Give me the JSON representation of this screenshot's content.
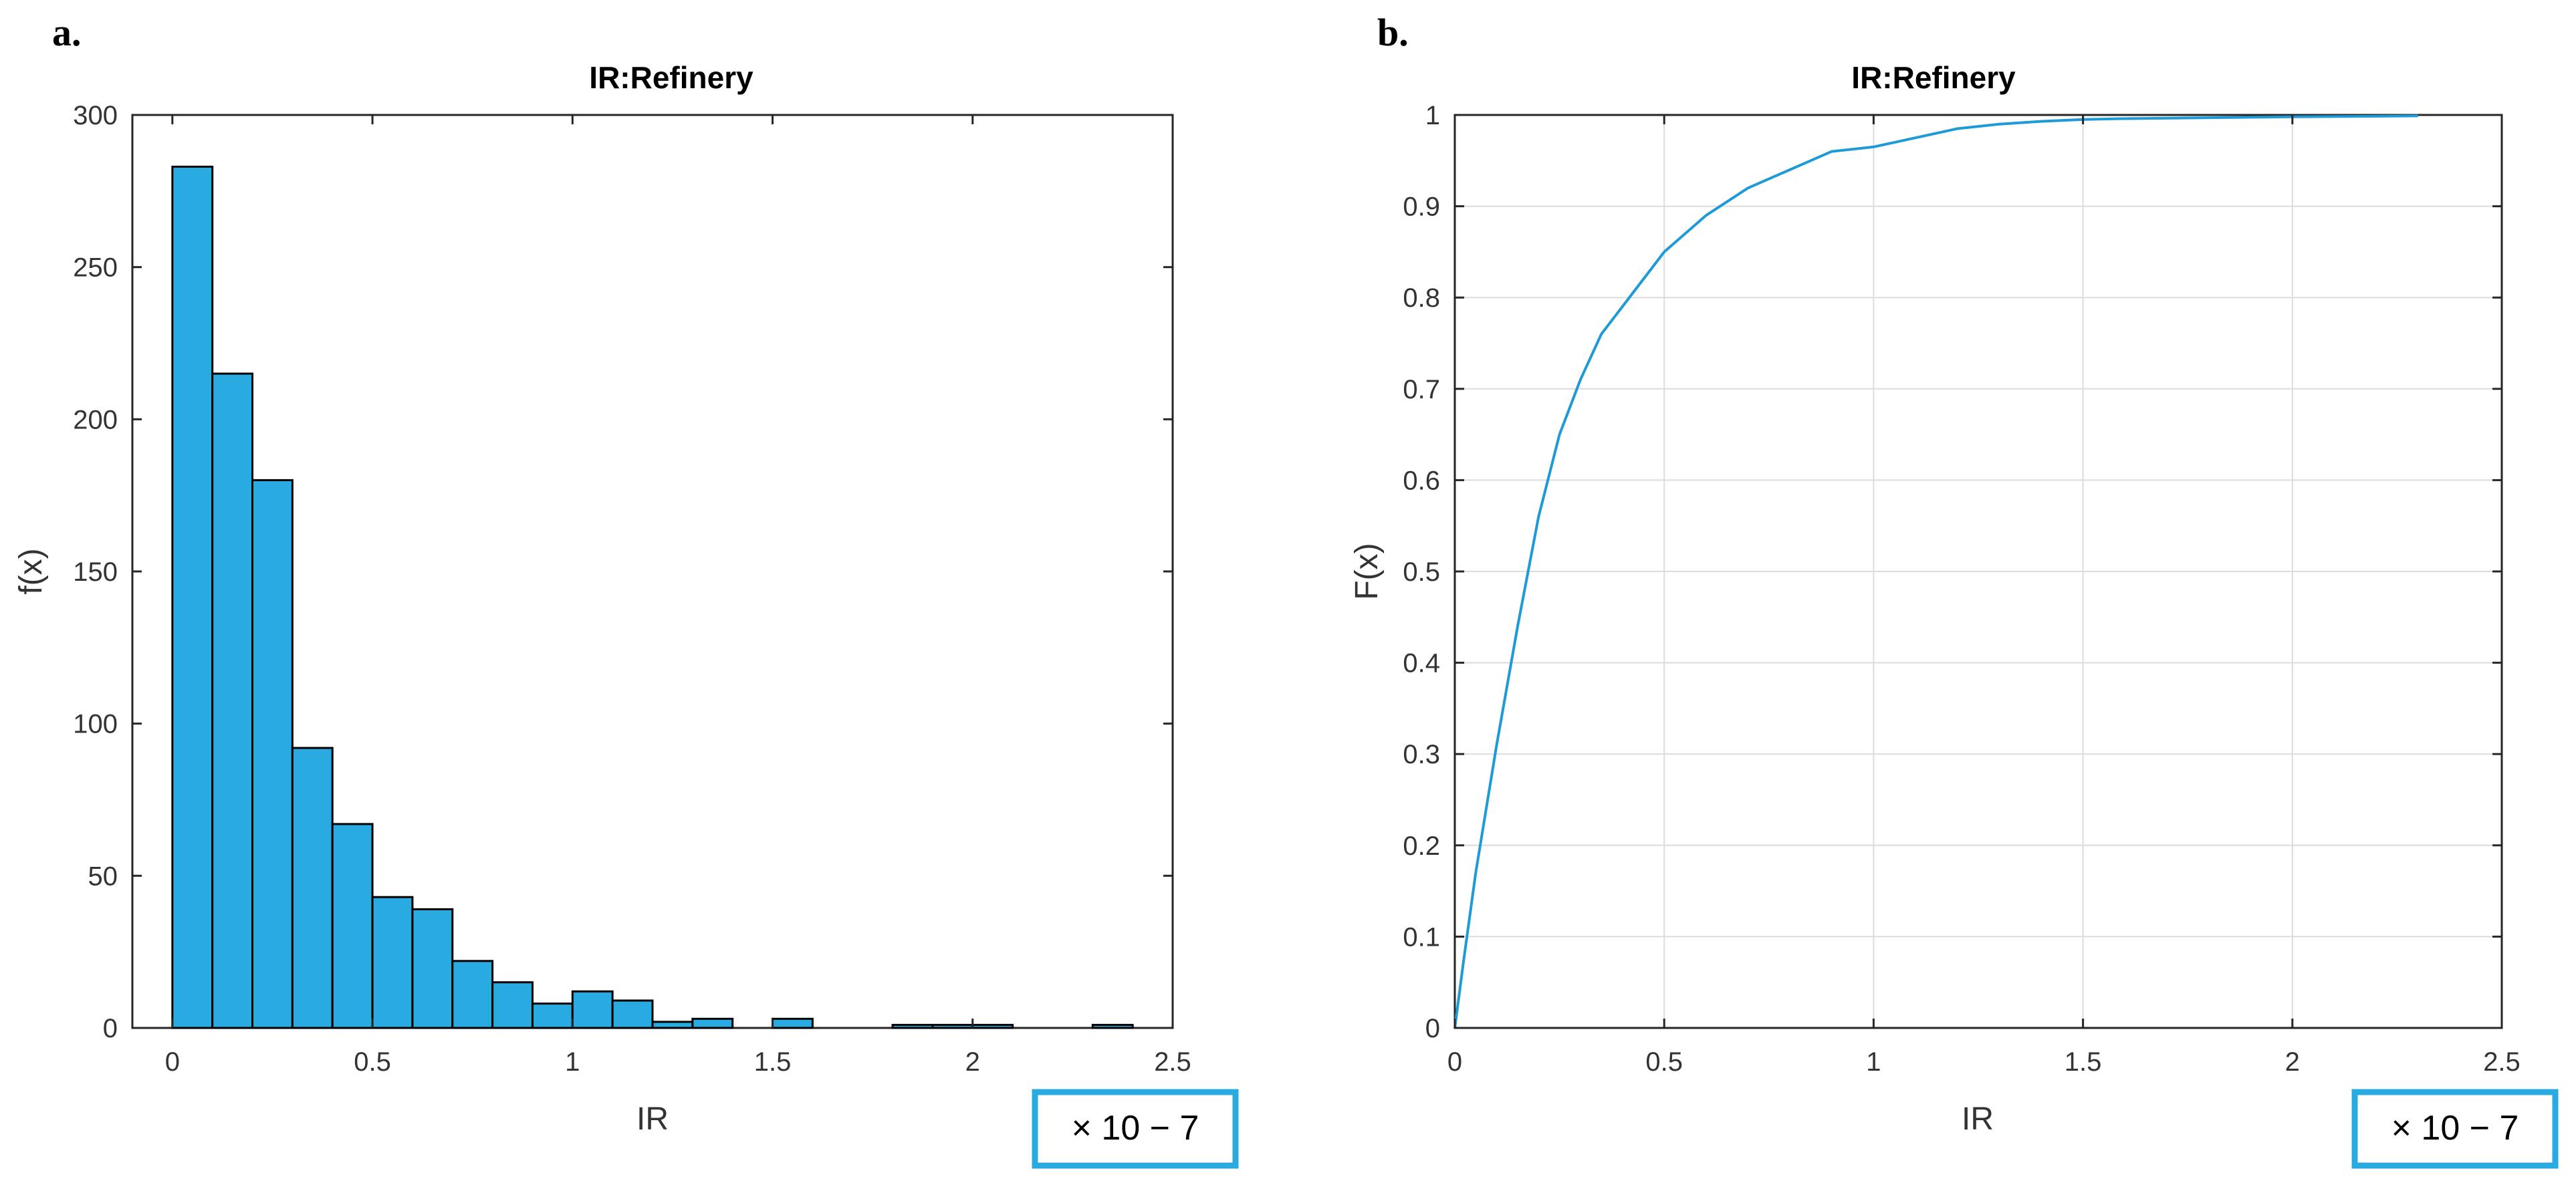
{
  "chart_data": [
    {
      "panel": "a.",
      "type": "bar",
      "title": "IR:Refinery",
      "xlabel": "IR",
      "ylabel": "f(x)",
      "x_multiplier": "× 10 − 7",
      "xlim": [
        -0.1,
        2.5
      ],
      "ylim": [
        0,
        300
      ],
      "xticks": [
        0,
        0.5,
        1,
        1.5,
        2,
        2.5
      ],
      "xtick_labels": [
        "0",
        "0.5",
        "1",
        "1.5",
        "2",
        "2.5"
      ],
      "yticks": [
        0,
        50,
        100,
        150,
        200,
        250,
        300
      ],
      "ytick_labels": [
        "0",
        "50",
        "100",
        "150",
        "200",
        "250",
        "300"
      ],
      "bin_width": 0.1,
      "bin_starts": [
        0,
        0.1,
        0.2,
        0.3,
        0.4,
        0.5,
        0.6,
        0.7,
        0.8,
        0.9,
        1.0,
        1.1,
        1.2,
        1.3,
        1.4,
        1.5,
        1.6,
        1.7,
        1.8,
        1.9,
        2.0,
        2.1,
        2.2,
        2.3
      ],
      "values": [
        283,
        215,
        180,
        92,
        67,
        43,
        39,
        22,
        15,
        8,
        12,
        9,
        2,
        3,
        0,
        3,
        0,
        0,
        1,
        1,
        1,
        0,
        0,
        1
      ],
      "bar_color": "#29ABE2",
      "grid": false
    },
    {
      "panel": "b.",
      "type": "line",
      "title": "IR:Refinery",
      "xlabel": "IR",
      "ylabel": "F(x)",
      "x_multiplier": "× 10 − 7",
      "xlim": [
        0,
        2.5
      ],
      "ylim": [
        0,
        1
      ],
      "xticks": [
        0,
        0.5,
        1,
        1.5,
        2,
        2.5
      ],
      "xtick_labels": [
        "0",
        "0.5",
        "1",
        "1.5",
        "2",
        "2.5"
      ],
      "yticks": [
        0,
        0.1,
        0.2,
        0.3,
        0.4,
        0.5,
        0.6,
        0.7,
        0.8,
        0.9,
        1
      ],
      "ytick_labels": [
        "0",
        "0.1",
        "0.2",
        "0.3",
        "0.4",
        "0.5",
        "0.6",
        "0.7",
        "0.8",
        "0.9",
        "1"
      ],
      "series": [
        {
          "color": "#1E9BD7",
          "x": [
            0,
            0.02,
            0.05,
            0.1,
            0.15,
            0.2,
            0.25,
            0.3,
            0.35,
            0.4,
            0.45,
            0.5,
            0.55,
            0.6,
            0.7,
            0.8,
            0.9,
            1.0,
            1.1,
            1.2,
            1.3,
            1.4,
            1.5,
            1.6,
            1.8,
            2.0,
            2.3
          ],
          "y": [
            0,
            0.07,
            0.17,
            0.31,
            0.44,
            0.56,
            0.65,
            0.71,
            0.76,
            0.79,
            0.82,
            0.85,
            0.87,
            0.89,
            0.92,
            0.94,
            0.96,
            0.965,
            0.975,
            0.985,
            0.99,
            0.993,
            0.995,
            0.996,
            0.997,
            0.998,
            0.999
          ]
        }
      ],
      "grid": true
    }
  ]
}
